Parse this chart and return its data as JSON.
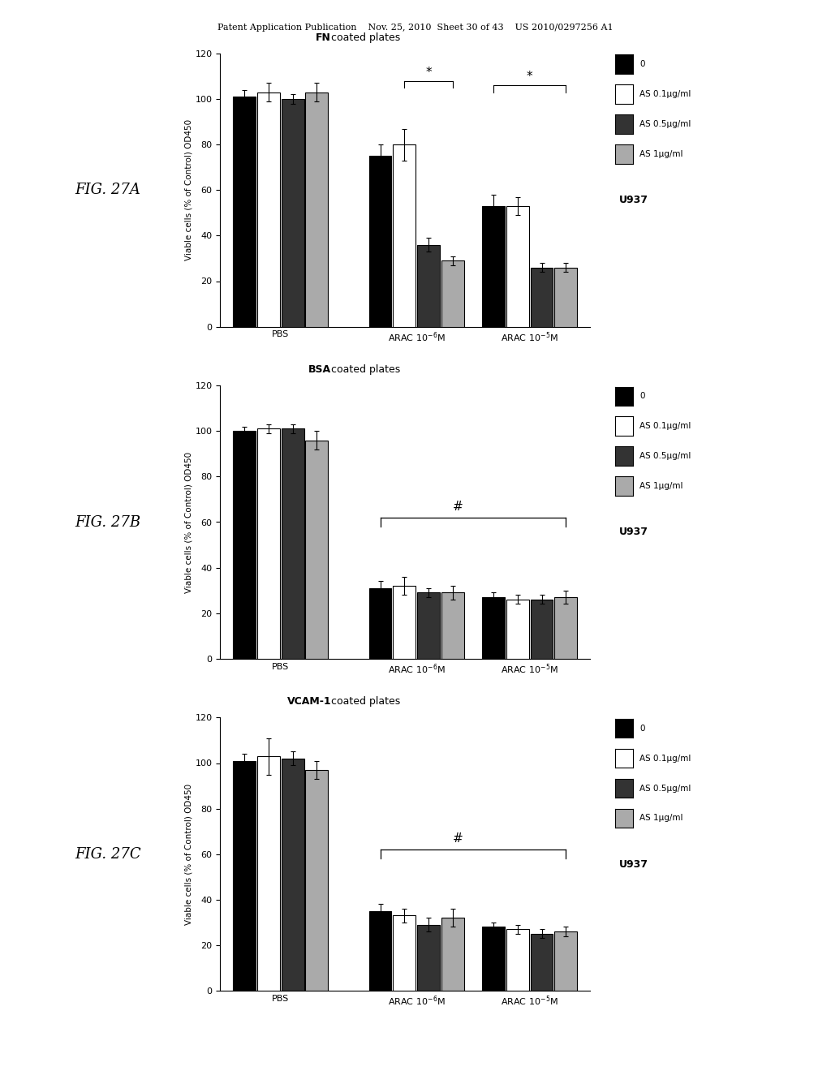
{
  "figsize": [
    10.24,
    13.2
  ],
  "dpi": 100,
  "bg_color": "#ffffff",
  "header_text": "Patent Application Publication    Nov. 25, 2010  Sheet 30 of 43    US 2010/0297256 A1",
  "charts": [
    {
      "fig_label": "FIG. 27A",
      "title_bold": "FN",
      "title_rest": "coated plates",
      "ylabel": "Viable cells (% of Control) OD450",
      "ylim": [
        0,
        120
      ],
      "yticks": [
        0,
        20,
        40,
        60,
        80,
        100,
        120
      ],
      "group_labels": [
        "PBS",
        "ARAC 10$^{-6}$M",
        "ARAC 10$^{-5}$M"
      ],
      "bar_values": [
        [
          101,
          103,
          100,
          103
        ],
        [
          75,
          80,
          36,
          29
        ],
        [
          53,
          53,
          26,
          26
        ]
      ],
      "bar_errors": [
        [
          3,
          4,
          2,
          4
        ],
        [
          5,
          7,
          3,
          2
        ],
        [
          5,
          4,
          2,
          2
        ]
      ],
      "bar_colors": [
        "#000000",
        "#ffffff",
        "#333333",
        "#aaaaaa"
      ],
      "bar_edgecolors": [
        "#000000",
        "#000000",
        "#000000",
        "#000000"
      ],
      "legend_labels": [
        "0",
        "AS 0.1μg/ml",
        "AS 0.5μg/ml",
        "AS 1μg/ml"
      ],
      "cell_line": "U937"
    },
    {
      "fig_label": "FIG. 27B",
      "title_bold": "BSA",
      "title_rest": "coated plates",
      "ylabel": "Viable cells (% of Control) OD450",
      "ylim": [
        0,
        120
      ],
      "yticks": [
        0,
        20,
        40,
        60,
        80,
        100,
        120
      ],
      "group_labels": [
        "PBS",
        "ARAC 10$^{-6}$M",
        "ARAC 10$^{-5}$M"
      ],
      "bar_values": [
        [
          100,
          101,
          101,
          96
        ],
        [
          31,
          32,
          29,
          29
        ],
        [
          27,
          26,
          26,
          27
        ]
      ],
      "bar_errors": [
        [
          2,
          2,
          2,
          4
        ],
        [
          3,
          4,
          2,
          3
        ],
        [
          2,
          2,
          2,
          3
        ]
      ],
      "bar_colors": [
        "#000000",
        "#ffffff",
        "#333333",
        "#aaaaaa"
      ],
      "bar_edgecolors": [
        "#000000",
        "#000000",
        "#000000",
        "#000000"
      ],
      "legend_labels": [
        "0",
        "AS 0.1μg/ml",
        "AS 0.5μg/ml",
        "AS 1μg/ml"
      ],
      "cell_line": "U937"
    },
    {
      "fig_label": "FIG. 27C",
      "title_bold": "VCAM-1",
      "title_rest": "coated plates",
      "ylabel": "Viable cells (% of Control) OD450",
      "ylim": [
        0,
        120
      ],
      "yticks": [
        0,
        20,
        40,
        60,
        80,
        100,
        120
      ],
      "group_labels": [
        "PBS",
        "ARAC 10$^{-6}$M",
        "ARAC 10$^{-5}$M"
      ],
      "bar_values": [
        [
          101,
          103,
          102,
          97
        ],
        [
          35,
          33,
          29,
          32
        ],
        [
          28,
          27,
          25,
          26
        ]
      ],
      "bar_errors": [
        [
          3,
          8,
          3,
          4
        ],
        [
          3,
          3,
          3,
          4
        ],
        [
          2,
          2,
          2,
          2
        ]
      ],
      "bar_colors": [
        "#000000",
        "#ffffff",
        "#333333",
        "#aaaaaa"
      ],
      "bar_edgecolors": [
        "#000000",
        "#000000",
        "#000000",
        "#000000"
      ],
      "legend_labels": [
        "0",
        "AS 0.1μg/ml",
        "AS 0.5μg/ml",
        "AS 1μg/ml"
      ],
      "cell_line": "U937"
    }
  ]
}
